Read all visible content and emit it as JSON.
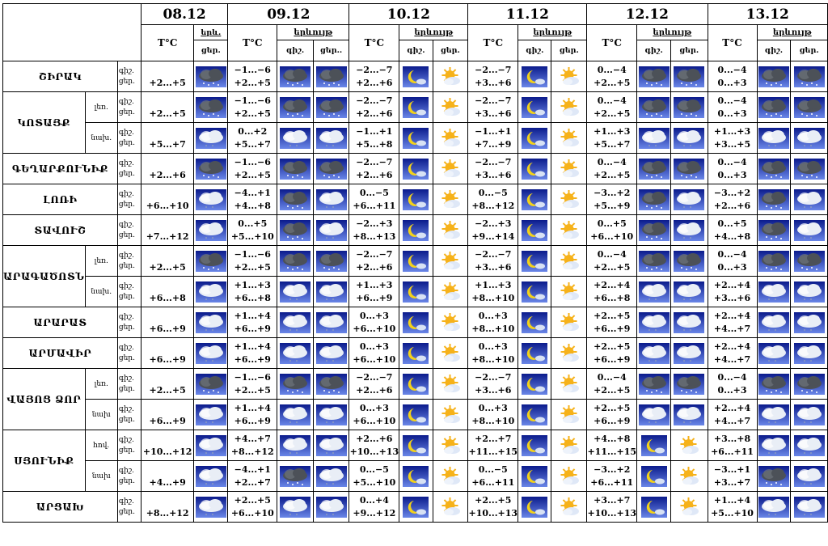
{
  "header": {
    "dates": [
      "08.12",
      "09.12",
      "10.12",
      "11.12",
      "12.12",
      "13.12"
    ],
    "temp_label": "T°C",
    "weather_label": "երևույթ",
    "weather_label_short": "երև.",
    "night": "գիշ.",
    "day": "ցեր.",
    "day_trunc": "ցեր.."
  },
  "icon_types": {
    "dark": "dark-snow-cloud-icon",
    "cloud": "snow-cloud-icon",
    "moon": "moon-cloud-icon",
    "sun": "sun-cloud-icon"
  },
  "colors": {
    "sky_top": "#0b1b8c",
    "sky_bottom": "#6a86e8",
    "moon": "#f3d21a",
    "sun": "#f6b21a"
  },
  "rows": [
    {
      "region": "ՇԻՐԱԿ",
      "sub": "",
      "rowspan": 1,
      "d0": {
        "t": [
          "",
          "+2...+5"
        ],
        "icon": "dark"
      },
      "d1": {
        "t": [
          "−1...−6",
          "+2...+5"
        ],
        "icons": [
          "dark",
          "dark"
        ]
      },
      "d2": {
        "t": [
          "−2...−7",
          "+2...+6"
        ],
        "icons": [
          "moon",
          "sun"
        ]
      },
      "d3": {
        "t": [
          "−2...−7",
          "+3...+6"
        ],
        "icons": [
          "moon",
          "sun"
        ]
      },
      "d4": {
        "t": [
          "0...−4",
          "+2...+5"
        ],
        "icons": [
          "dark",
          "dark"
        ]
      },
      "d5": {
        "t": [
          "0...−4",
          "0...+3"
        ],
        "icons": [
          "dark",
          "dark"
        ]
      }
    },
    {
      "region": "ԿՈՏԱՅՔ",
      "sub": "լեռ.",
      "rowspan": 2,
      "d0": {
        "t": [
          "",
          "+2...+5"
        ],
        "icon": "dark"
      },
      "d1": {
        "t": [
          "−1...−6",
          "+2...+5"
        ],
        "icons": [
          "dark",
          "dark"
        ]
      },
      "d2": {
        "t": [
          "−2...−7",
          "+2...+6"
        ],
        "icons": [
          "moon",
          "sun"
        ]
      },
      "d3": {
        "t": [
          "−2...−7",
          "+3...+6"
        ],
        "icons": [
          "moon",
          "sun"
        ]
      },
      "d4": {
        "t": [
          "0...−4",
          "+2...+5"
        ],
        "icons": [
          "dark",
          "dark"
        ]
      },
      "d5": {
        "t": [
          "0...−4",
          "0...+3"
        ],
        "icons": [
          "dark",
          "dark"
        ]
      }
    },
    {
      "region": "",
      "sub": "նախ.",
      "cont": true,
      "d0": {
        "t": [
          "",
          "+5...+7"
        ],
        "icon": "cloud"
      },
      "d1": {
        "t": [
          "0...+2",
          "+5...+7"
        ],
        "icons": [
          "cloud",
          "cloud"
        ]
      },
      "d2": {
        "t": [
          "−1...+1",
          "+5...+8"
        ],
        "icons": [
          "moon",
          "sun"
        ]
      },
      "d3": {
        "t": [
          "−1...+1",
          "+7...+9"
        ],
        "icons": [
          "moon",
          "sun"
        ]
      },
      "d4": {
        "t": [
          "+1...+3",
          "+5...+7"
        ],
        "icons": [
          "cloud",
          "cloud"
        ]
      },
      "d5": {
        "t": [
          "+1...+3",
          "+3...+5"
        ],
        "icons": [
          "cloud",
          "cloud"
        ]
      }
    },
    {
      "region": "ԳԵՂԱՐՔՈՒՆԻՔ",
      "sub": "",
      "rowspan": 1,
      "d0": {
        "t": [
          "",
          "+2...+6"
        ],
        "icon": "dark"
      },
      "d1": {
        "t": [
          "−1...−6",
          "+2...+5"
        ],
        "icons": [
          "dark",
          "dark"
        ]
      },
      "d2": {
        "t": [
          "−2...−7",
          "+2...+6"
        ],
        "icons": [
          "moon",
          "sun"
        ]
      },
      "d3": {
        "t": [
          "−2...−7",
          "+3...+6"
        ],
        "icons": [
          "moon",
          "sun"
        ]
      },
      "d4": {
        "t": [
          "0...−4",
          "+2...+5"
        ],
        "icons": [
          "dark",
          "dark"
        ]
      },
      "d5": {
        "t": [
          "0...−4",
          "0...+3"
        ],
        "icons": [
          "dark",
          "dark"
        ]
      }
    },
    {
      "region": "ԼՈՌԻ",
      "sub": "",
      "rowspan": 1,
      "d0": {
        "t": [
          "",
          "+6...+10"
        ],
        "icon": "cloud"
      },
      "d1": {
        "t": [
          "−4...+1",
          "+4...+8"
        ],
        "icons": [
          "dark",
          "cloud"
        ]
      },
      "d2": {
        "t": [
          "0...−5",
          "+6...+11"
        ],
        "icons": [
          "moon",
          "sun"
        ]
      },
      "d3": {
        "t": [
          "0...−5",
          "+8...+12"
        ],
        "icons": [
          "moon",
          "sun"
        ]
      },
      "d4": {
        "t": [
          "−3...+2",
          "+5...+9"
        ],
        "icons": [
          "dark",
          "cloud"
        ]
      },
      "d5": {
        "t": [
          "−3...+2",
          "+2...+6"
        ],
        "icons": [
          "dark",
          "cloud"
        ]
      }
    },
    {
      "region": "ՏԱՎՈՒՇ",
      "sub": "",
      "rowspan": 1,
      "d0": {
        "t": [
          "",
          "+7...+12"
        ],
        "icon": "cloud"
      },
      "d1": {
        "t": [
          "0...+5",
          "+5...+10"
        ],
        "icons": [
          "dark",
          "cloud"
        ]
      },
      "d2": {
        "t": [
          "−2...+3",
          "+8...+13"
        ],
        "icons": [
          "moon",
          "sun"
        ]
      },
      "d3": {
        "t": [
          "−2...+3",
          "+9...+14"
        ],
        "icons": [
          "moon",
          "sun"
        ]
      },
      "d4": {
        "t": [
          "0...+5",
          "+6...+10"
        ],
        "icons": [
          "dark",
          "cloud"
        ]
      },
      "d5": {
        "t": [
          "0...+5",
          "+4...+8"
        ],
        "icons": [
          "dark",
          "cloud"
        ]
      }
    },
    {
      "region": "ԱՐԱԳԱԾՈՏՆ",
      "sub": "լեռ.",
      "rowspan": 2,
      "d0": {
        "t": [
          "",
          "+2...+5"
        ],
        "icon": "dark"
      },
      "d1": {
        "t": [
          "−1...−6",
          "+2...+5"
        ],
        "icons": [
          "dark",
          "dark"
        ]
      },
      "d2": {
        "t": [
          "−2...−7",
          "+2...+6"
        ],
        "icons": [
          "moon",
          "sun"
        ]
      },
      "d3": {
        "t": [
          "−2...−7",
          "+3...+6"
        ],
        "icons": [
          "moon",
          "sun"
        ]
      },
      "d4": {
        "t": [
          "0...−4",
          "+2...+5"
        ],
        "icons": [
          "dark",
          "dark"
        ]
      },
      "d5": {
        "t": [
          "0...−4",
          "0...+3"
        ],
        "icons": [
          "dark",
          "dark"
        ]
      }
    },
    {
      "region": "",
      "sub": "նախ.",
      "cont": true,
      "d0": {
        "t": [
          "",
          "+6...+8"
        ],
        "icon": "cloud"
      },
      "d1": {
        "t": [
          "+1...+3",
          "+6...+8"
        ],
        "icons": [
          "cloud",
          "cloud"
        ]
      },
      "d2": {
        "t": [
          "+1...+3",
          "+6...+9"
        ],
        "icons": [
          "moon",
          "sun"
        ]
      },
      "d3": {
        "t": [
          "+1...+3",
          "+8...+10"
        ],
        "icons": [
          "moon",
          "sun"
        ]
      },
      "d4": {
        "t": [
          "+2...+4",
          "+6...+8"
        ],
        "icons": [
          "cloud",
          "cloud"
        ]
      },
      "d5": {
        "t": [
          "+2...+4",
          "+3...+6"
        ],
        "icons": [
          "cloud",
          "cloud"
        ]
      }
    },
    {
      "region": "ԱՐԱՐԱՏ",
      "sub": "",
      "rowspan": 1,
      "d0": {
        "t": [
          "",
          "+6...+9"
        ],
        "icon": "cloud"
      },
      "d1": {
        "t": [
          "+1...+4",
          "+6...+9"
        ],
        "icons": [
          "cloud",
          "cloud"
        ]
      },
      "d2": {
        "t": [
          "0...+3",
          "+6...+10"
        ],
        "icons": [
          "moon",
          "sun"
        ]
      },
      "d3": {
        "t": [
          "0...+3",
          "+8...+10"
        ],
        "icons": [
          "moon",
          "sun"
        ]
      },
      "d4": {
        "t": [
          "+2...+5",
          "+6...+9"
        ],
        "icons": [
          "cloud",
          "cloud"
        ]
      },
      "d5": {
        "t": [
          "+2...+4",
          "+4...+7"
        ],
        "icons": [
          "cloud",
          "cloud"
        ]
      }
    },
    {
      "region": "ԱՐՄԱՎԻՐ",
      "sub": "",
      "rowspan": 1,
      "d0": {
        "t": [
          "",
          "+6...+9"
        ],
        "icon": "cloud"
      },
      "d1": {
        "t": [
          "+1...+4",
          "+6...+9"
        ],
        "icons": [
          "cloud",
          "cloud"
        ]
      },
      "d2": {
        "t": [
          "0...+3",
          "+6...+10"
        ],
        "icons": [
          "moon",
          "sun"
        ]
      },
      "d3": {
        "t": [
          "0...+3",
          "+8...+10"
        ],
        "icons": [
          "moon",
          "sun"
        ]
      },
      "d4": {
        "t": [
          "+2...+5",
          "+6...+9"
        ],
        "icons": [
          "cloud",
          "cloud"
        ]
      },
      "d5": {
        "t": [
          "+2...+4",
          "+4...+7"
        ],
        "icons": [
          "cloud",
          "cloud"
        ]
      }
    },
    {
      "region": "ՎԱՅՈՑ ՁՈՐ",
      "sub": "լեռ.",
      "rowspan": 2,
      "d0": {
        "t": [
          "",
          "+2...+5"
        ],
        "icon": "dark"
      },
      "d1": {
        "t": [
          "−1...−6",
          "+2...+5"
        ],
        "icons": [
          "dark",
          "dark"
        ]
      },
      "d2": {
        "t": [
          "−2...−7",
          "+2...+6"
        ],
        "icons": [
          "moon",
          "sun"
        ]
      },
      "d3": {
        "t": [
          "−2...−7",
          "+3...+6"
        ],
        "icons": [
          "moon",
          "sun"
        ]
      },
      "d4": {
        "t": [
          "0...−4",
          "+2...+5"
        ],
        "icons": [
          "dark",
          "dark"
        ]
      },
      "d5": {
        "t": [
          "0...−4",
          "0...+3"
        ],
        "icons": [
          "dark",
          "dark"
        ]
      }
    },
    {
      "region": "",
      "sub": "նախ",
      "cont": true,
      "d0": {
        "t": [
          "",
          "+6...+9"
        ],
        "icon": "cloud"
      },
      "d1": {
        "t": [
          "+1...+4",
          "+6...+9"
        ],
        "icons": [
          "cloud",
          "cloud"
        ]
      },
      "d2": {
        "t": [
          "0...+3",
          "+6...+10"
        ],
        "icons": [
          "moon",
          "sun"
        ]
      },
      "d3": {
        "t": [
          "0...+3",
          "+8...+10"
        ],
        "icons": [
          "moon",
          "sun"
        ]
      },
      "d4": {
        "t": [
          "+2...+5",
          "+6...+9"
        ],
        "icons": [
          "cloud",
          "cloud"
        ]
      },
      "d5": {
        "t": [
          "+2...+4",
          "+4...+7"
        ],
        "icons": [
          "cloud",
          "cloud"
        ]
      }
    },
    {
      "region": "ՍՅՈՒՆԻՔ",
      "sub": "հով.",
      "rowspan": 2,
      "d0": {
        "t": [
          "",
          "+10...+12"
        ],
        "icon": "cloud"
      },
      "d1": {
        "t": [
          "+4...+7",
          "+8...+12"
        ],
        "icons": [
          "cloud",
          "cloud"
        ]
      },
      "d2": {
        "t": [
          "+2...+6",
          "+10...+13"
        ],
        "icons": [
          "moon",
          "sun"
        ]
      },
      "d3": {
        "t": [
          "+2...+7",
          "+11...+15"
        ],
        "icons": [
          "moon",
          "sun"
        ]
      },
      "d4": {
        "t": [
          "+4...+8",
          "+11...+15"
        ],
        "icons": [
          "moon",
          "sun"
        ]
      },
      "d5": {
        "t": [
          "+3...+8",
          "+6...+11"
        ],
        "icons": [
          "cloud",
          "cloud"
        ]
      }
    },
    {
      "region": "",
      "sub": "նախ",
      "cont": true,
      "d0": {
        "t": [
          "",
          "+4...+9"
        ],
        "icon": "cloud"
      },
      "d1": {
        "t": [
          "−4...+1",
          "+2...+7"
        ],
        "icons": [
          "dark",
          "cloud"
        ]
      },
      "d2": {
        "t": [
          "0...−5",
          "+5...+10"
        ],
        "icons": [
          "moon",
          "sun"
        ]
      },
      "d3": {
        "t": [
          "0...−5",
          "+6...+11"
        ],
        "icons": [
          "moon",
          "sun"
        ]
      },
      "d4": {
        "t": [
          "−3...+2",
          "+6...+11"
        ],
        "icons": [
          "moon",
          "sun"
        ]
      },
      "d5": {
        "t": [
          "−3...+1",
          "+3...+7"
        ],
        "icons": [
          "dark",
          "cloud"
        ]
      }
    },
    {
      "region": "ԱՐՑԱԽ",
      "sub": "",
      "rowspan": 1,
      "d0": {
        "t": [
          "",
          "+8...+12"
        ],
        "icon": "cloud"
      },
      "d1": {
        "t": [
          "+2...+5",
          "+6...+10"
        ],
        "icons": [
          "cloud",
          "cloud"
        ]
      },
      "d2": {
        "t": [
          "0...+4",
          "+9...+12"
        ],
        "icons": [
          "moon",
          "sun"
        ]
      },
      "d3": {
        "t": [
          "+2...+5",
          "+10...+13"
        ],
        "icons": [
          "moon",
          "sun"
        ]
      },
      "d4": {
        "t": [
          "+3...+7",
          "+10...+13"
        ],
        "icons": [
          "moon",
          "sun"
        ]
      },
      "d5": {
        "t": [
          "+1...+4",
          "+5...+10"
        ],
        "icons": [
          "cloud",
          "cloud"
        ]
      }
    }
  ]
}
